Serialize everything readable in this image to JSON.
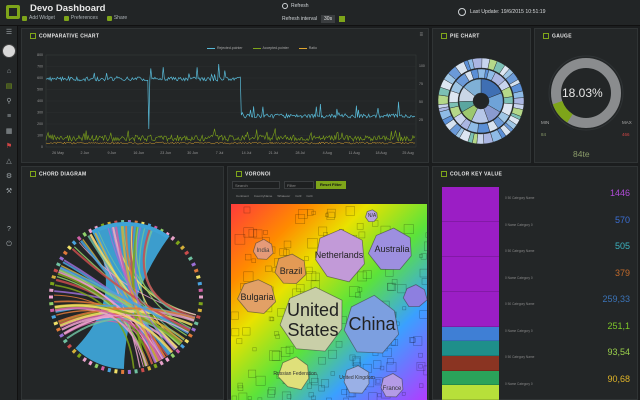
{
  "app": {
    "title": "Devo Dashboard"
  },
  "toolbar": {
    "add_widget": "Add Widget",
    "preferences": "Preferences",
    "share": "Share"
  },
  "refresh": {
    "label": "Refresh",
    "interval_label": "Refresh interval",
    "interval_value": "30s"
  },
  "last_update": "Last Update: 19/6/2015 10:51:19",
  "panels": {
    "comparative": {
      "title": "COMPARATIVE CHART",
      "legend": [
        "Rejected.pointer",
        "Accepted.pointer",
        "Ratio"
      ]
    },
    "pie": {
      "title": "PIE CHART"
    },
    "gauge": {
      "title": "GAUGE",
      "percent": "18.03%",
      "value": "84te",
      "min_label": "MIN",
      "min_value": "84",
      "max_label": "MAX",
      "max_value": "466"
    },
    "chord": {
      "title": "CHORD DIAGRAM"
    },
    "voronoi": {
      "title": "VORONOI",
      "search_placeholder": "Search",
      "filter_placeholder": "Filter",
      "reset_label": "Reset Filter",
      "legend": [
        "Continent",
        "CountryName",
        "Whatever",
        "Col3",
        "Col4"
      ]
    },
    "color_key": {
      "title": "COLOR KEY VALUE"
    }
  },
  "voronoi_labels": [
    {
      "text": "United",
      "size": 18,
      "color": "#222"
    },
    {
      "text": "States",
      "size": 18,
      "color": "#222"
    },
    {
      "text": "China",
      "size": 18,
      "color": "#222"
    },
    {
      "text": "Netherlands",
      "size": 9,
      "color": "#222"
    },
    {
      "text": "Australia",
      "size": 9,
      "color": "#222"
    },
    {
      "text": "Brazil",
      "size": 9,
      "color": "#222"
    },
    {
      "text": "Bulgaria",
      "size": 9,
      "color": "#222"
    },
    {
      "text": "India",
      "size": 6,
      "color": "#444"
    },
    {
      "text": "Russian Federation",
      "size": 5,
      "color": "#333"
    },
    {
      "text": "United Kingdom",
      "size": 5,
      "color": "#333"
    },
    {
      "text": "France",
      "size": 6,
      "color": "#333"
    },
    {
      "text": "N/A",
      "size": 5,
      "color": "#333"
    }
  ],
  "color_key_values": [
    {
      "value": "1446",
      "color": "#b04bd8"
    },
    {
      "value": "570",
      "color": "#3b6fd6"
    },
    {
      "value": "505",
      "color": "#3bb3c0"
    },
    {
      "value": "379",
      "color": "#c26a2b"
    },
    {
      "value": "259,33",
      "color": "#3b73b7"
    },
    {
      "value": "251,1",
      "color": "#7ec828"
    },
    {
      "value": "93,54",
      "color": "#9ad04b"
    },
    {
      "value": "90,68",
      "color": "#e0b428"
    }
  ],
  "color_key_bars": [
    "#9b1ec5",
    "#9b1ec5",
    "#9b1ec5",
    "#9b1ec5",
    "#3f7fd5",
    "#1e8f8a",
    "#8a3422",
    "#2aa35a",
    "#b7e03a"
  ],
  "color_key_labels": [
    "0 50 Category Name",
    "0 Name Category 0",
    "0 50 Category Name",
    "0 Name Category 0",
    "0 50 Category Name",
    "0 Name Category 0",
    "0 50 Category Name",
    "0 Name Category 0"
  ],
  "chart_axes": {
    "y_ticks": [
      "800",
      "700",
      "600",
      "500",
      "400",
      "300",
      "200",
      "100",
      "0"
    ],
    "x_ticks": [
      "26 May",
      "2 Jun",
      "9 Jun",
      "16 Jun",
      "23 Jun",
      "30 Jun",
      "7 Jul",
      "14 Jul",
      "21 Jul",
      "28 Jul",
      "4 Aug",
      "11 Aug",
      "18 Aug",
      "25 Aug"
    ],
    "y2_ticks": [
      "100",
      "75",
      "50",
      "25"
    ]
  },
  "colors": {
    "accent": "#7ea51a",
    "panel": "#232627",
    "bg": "#1b1d1e"
  }
}
